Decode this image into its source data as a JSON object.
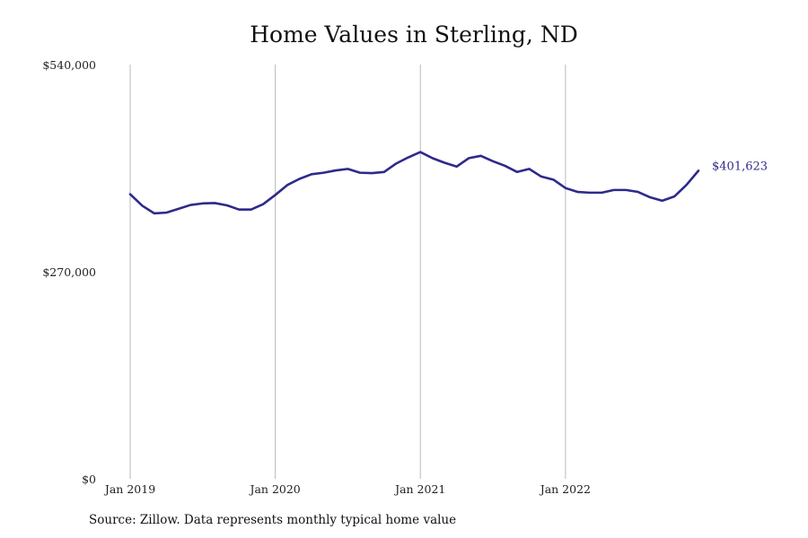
{
  "chart_data": {
    "type": "line",
    "title": "Home Values in Sterling, ND",
    "xlabel": "",
    "ylabel": "",
    "y_ticks": [
      "$540,000",
      "$270,000",
      "$0"
    ],
    "y_tick_values": [
      540000,
      270000,
      0
    ],
    "ylim": [
      0,
      540000
    ],
    "x_ticks": [
      "Jan 2019",
      "Jan 2020",
      "Jan 2021",
      "Jan 2022"
    ],
    "x_tick_values": [
      "2019-01",
      "2020-01",
      "2021-01",
      "2022-01"
    ],
    "xlim": [
      "2019-01",
      "2022-12"
    ],
    "grid": "vertical lines at x ticks",
    "end_label": "$401,623",
    "line_color": "#2e2a8a",
    "series": [
      {
        "x": [
          "2019-01",
          "2019-02",
          "2019-03",
          "2019-04",
          "2019-05",
          "2019-06",
          "2019-07",
          "2019-08",
          "2019-09",
          "2019-10",
          "2019-11",
          "2019-12",
          "2020-01",
          "2020-02",
          "2020-03",
          "2020-04",
          "2020-05",
          "2020-06",
          "2020-07",
          "2020-08",
          "2020-09",
          "2020-10",
          "2020-11",
          "2020-12",
          "2021-01",
          "2021-02",
          "2021-03",
          "2021-04",
          "2021-05",
          "2021-06",
          "2021-07",
          "2021-08",
          "2021-09",
          "2021-10",
          "2021-11",
          "2021-12",
          "2022-01",
          "2022-02",
          "2022-03",
          "2022-04",
          "2022-05",
          "2022-06",
          "2022-07",
          "2022-08",
          "2022-09",
          "2022-10",
          "2022-11",
          "2022-12"
        ],
        "values": [
          371000,
          356000,
          346000,
          347000,
          352000,
          357000,
          359000,
          359500,
          356500,
          351000,
          351000,
          358000,
          370000,
          383000,
          391000,
          397000,
          399000,
          402000,
          404000,
          399000,
          398500,
          400000,
          411000,
          419000,
          426000,
          418000,
          412000,
          407000,
          418000,
          421000,
          414000,
          408000,
          400000,
          404000,
          394000,
          390000,
          379000,
          374000,
          373000,
          373000,
          376500,
          376500,
          374000,
          367000,
          362500,
          368000,
          383000,
          401623
        ]
      }
    ]
  },
  "source": "Source: Zillow. Data represents monthly typical home value"
}
